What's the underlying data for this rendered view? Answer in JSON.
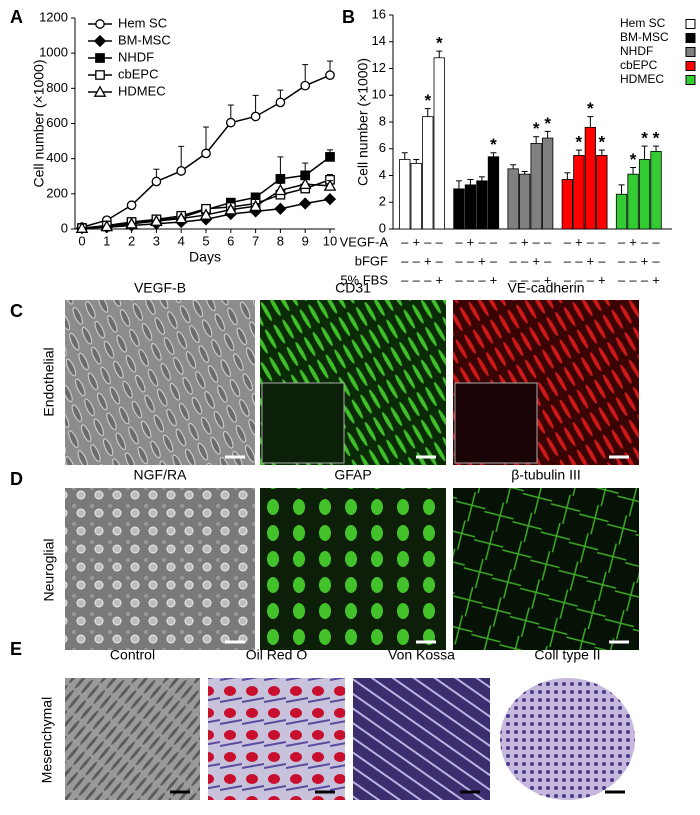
{
  "chart_data": [
    {
      "type": "line",
      "panel": "A",
      "x_label": "Days",
      "y_label": "Cell number (×1000)",
      "x": [
        0,
        1,
        2,
        3,
        4,
        5,
        6,
        7,
        8,
        9,
        10
      ],
      "xlim": [
        0,
        10
      ],
      "xticks": [
        0,
        1,
        2,
        3,
        4,
        5,
        6,
        7,
        8,
        9,
        10
      ],
      "ylim": [
        0,
        1200
      ],
      "yticks": [
        0,
        200,
        400,
        600,
        800,
        1000,
        1200
      ],
      "legend": "upper left",
      "series": [
        {
          "name": "Hem SC",
          "color": "#000000",
          "marker": "circle-open",
          "values": [
            10,
            50,
            135,
            270,
            330,
            430,
            605,
            640,
            720,
            815,
            875
          ],
          "errors": [
            5,
            10,
            20,
            70,
            140,
            150,
            100,
            120,
            70,
            120,
            80
          ]
        },
        {
          "name": "BM-MSC",
          "color": "#000000",
          "marker": "diamond-filled",
          "values": [
            5,
            10,
            20,
            30,
            40,
            55,
            85,
            100,
            115,
            145,
            170
          ],
          "errors": [
            2,
            3,
            5,
            5,
            8,
            10,
            10,
            10,
            15,
            15,
            15
          ]
        },
        {
          "name": "NHDF",
          "color": "#000000",
          "marker": "square-filled",
          "values": [
            5,
            15,
            30,
            50,
            65,
            110,
            150,
            180,
            285,
            305,
            410
          ],
          "errors": [
            2,
            3,
            5,
            8,
            10,
            15,
            15,
            20,
            125,
            70,
            40
          ]
        },
        {
          "name": "cbEPC",
          "color": "#000000",
          "marker": "square-open",
          "values": [
            5,
            20,
            40,
            55,
            75,
            115,
            125,
            145,
            195,
            230,
            280
          ],
          "errors": [
            2,
            3,
            5,
            8,
            10,
            15,
            15,
            15,
            25,
            30,
            30
          ]
        },
        {
          "name": "HDMEC",
          "color": "#000000",
          "marker": "triangle-open",
          "values": [
            5,
            15,
            30,
            45,
            60,
            80,
            110,
            130,
            220,
            255,
            245
          ],
          "errors": [
            2,
            3,
            5,
            8,
            10,
            10,
            15,
            15,
            40,
            30,
            30
          ]
        }
      ]
    },
    {
      "type": "bar",
      "panel": "B",
      "y_label": "Cell number (×1000)",
      "ylim": [
        0,
        16
      ],
      "yticks": [
        0,
        2,
        4,
        6,
        8,
        10,
        12,
        14,
        16
      ],
      "legend": "upper right",
      "conditions": [
        {
          "name": "VEGF-A",
          "signs": [
            "–",
            "+",
            "–",
            "–"
          ]
        },
        {
          "name": "bFGF",
          "signs": [
            "–",
            "–",
            "+",
            "–"
          ]
        },
        {
          "name": "5% FBS",
          "signs": [
            "–",
            "–",
            "–",
            "+"
          ]
        }
      ],
      "series": [
        {
          "name": "Hem SC",
          "color": "#ffffff",
          "values": [
            5.2,
            4.9,
            8.4,
            12.8
          ],
          "errors": [
            0.5,
            0.3,
            0.6,
            0.5
          ],
          "stars": [
            null,
            null,
            "*",
            "*"
          ]
        },
        {
          "name": "BM-MSC",
          "color": "#000000",
          "values": [
            3.0,
            3.3,
            3.6,
            5.4
          ],
          "errors": [
            0.6,
            0.4,
            0.3,
            0.3
          ],
          "stars": [
            null,
            null,
            null,
            "*"
          ]
        },
        {
          "name": "NHDF",
          "color": "#808080",
          "values": [
            4.5,
            4.1,
            6.4,
            6.8
          ],
          "errors": [
            0.3,
            0.2,
            0.5,
            0.5
          ],
          "stars": [
            null,
            null,
            "*",
            "*"
          ]
        },
        {
          "name": "cbEPC",
          "color": "#ff0000",
          "values": [
            3.7,
            5.5,
            7.6,
            5.5
          ],
          "errors": [
            0.5,
            0.4,
            0.8,
            0.4
          ],
          "stars": [
            null,
            "*",
            "*",
            "*"
          ]
        },
        {
          "name": "HDMEC",
          "color": "#33cc33",
          "values": [
            2.6,
            4.1,
            5.2,
            5.8
          ],
          "errors": [
            0.7,
            0.5,
            1.0,
            0.4
          ],
          "stars": [
            null,
            "*",
            "*",
            "*"
          ]
        }
      ]
    }
  ],
  "images": [
    {
      "panel": "C",
      "row_label": "Endothelial",
      "captions": [
        "VEGF-B",
        "CD31",
        "VE-cadherin"
      ]
    },
    {
      "panel": "D",
      "row_label": "Neuroglial",
      "captions": [
        "NGF/RA",
        "GFAP",
        "β-tubulin III"
      ]
    },
    {
      "panel": "E",
      "row_label": "Mesenchymal",
      "captions": [
        "Control",
        "Oil Red O",
        "Von Kossa",
        "Coll type II"
      ]
    }
  ]
}
